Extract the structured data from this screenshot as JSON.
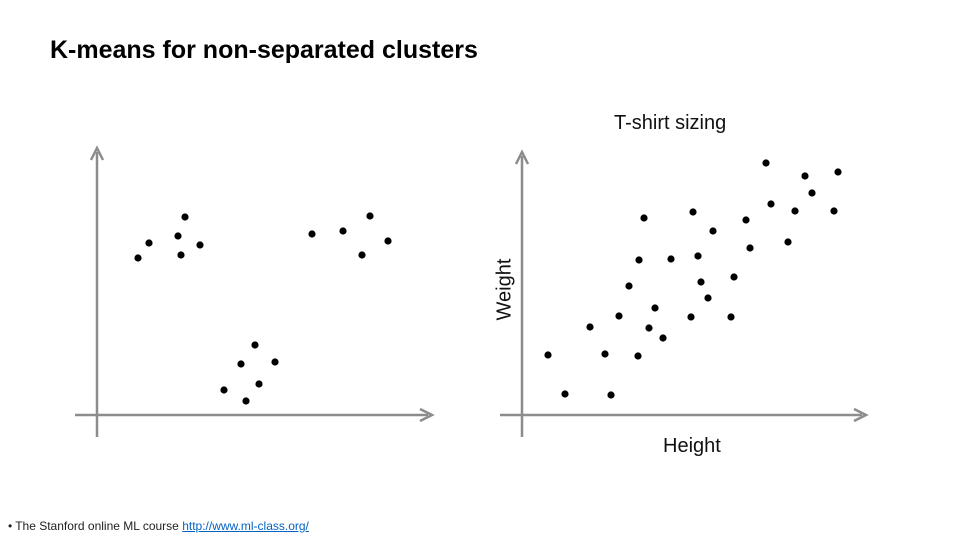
{
  "slide": {
    "title": "K-means for non-separated clusters"
  },
  "left_plot": {
    "points": [
      [
        138,
        258
      ],
      [
        149,
        243
      ],
      [
        185,
        217
      ],
      [
        178,
        236
      ],
      [
        181,
        255
      ],
      [
        200,
        245
      ],
      [
        312,
        234
      ],
      [
        343,
        231
      ],
      [
        370,
        216
      ],
      [
        388,
        241
      ],
      [
        362,
        255
      ],
      [
        255,
        345
      ],
      [
        241,
        364
      ],
      [
        275,
        362
      ],
      [
        224,
        390
      ],
      [
        259,
        384
      ],
      [
        246,
        401
      ]
    ]
  },
  "right_plot": {
    "title": "T-shirt sizing",
    "xlabel": "Height",
    "ylabel": "Weight",
    "points": [
      [
        548,
        355
      ],
      [
        565,
        394
      ],
      [
        590,
        327
      ],
      [
        605,
        354
      ],
      [
        611,
        395
      ],
      [
        619,
        316
      ],
      [
        629,
        286
      ],
      [
        638,
        356
      ],
      [
        639,
        260
      ],
      [
        644,
        218
      ],
      [
        649,
        328
      ],
      [
        655,
        308
      ],
      [
        663,
        338
      ],
      [
        671,
        259
      ],
      [
        693,
        212
      ],
      [
        691,
        317
      ],
      [
        698,
        256
      ],
      [
        701,
        282
      ],
      [
        708,
        298
      ],
      [
        713,
        231
      ],
      [
        731,
        317
      ],
      [
        734,
        277
      ],
      [
        746,
        220
      ],
      [
        750,
        248
      ],
      [
        766,
        163
      ],
      [
        771,
        204
      ],
      [
        788,
        242
      ],
      [
        795,
        211
      ],
      [
        805,
        176
      ],
      [
        812,
        193
      ],
      [
        834,
        211
      ],
      [
        838,
        172
      ]
    ]
  },
  "footnote": {
    "bullet": "•",
    "text": "The Stanford online ML course ",
    "link": "http://www.ml-class.org/"
  }
}
